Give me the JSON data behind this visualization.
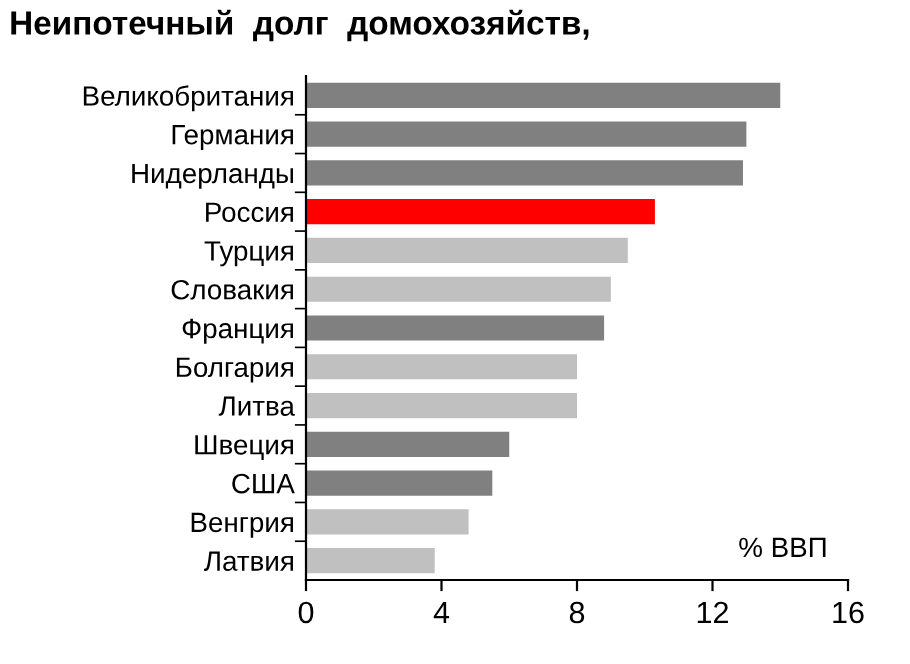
{
  "chart_data": {
    "type": "bar",
    "orientation": "horizontal",
    "title": "Неипотечный  долг  домохозяйств,",
    "categories": [
      "Великобритания",
      "Германия",
      "Нидерланды",
      "Россия",
      "Турция",
      "Словакия",
      "Франция",
      "Болгария",
      "Литва",
      "Швеция",
      "США",
      "Венгрия",
      "Латвия"
    ],
    "values": [
      14.0,
      13.0,
      12.9,
      10.3,
      9.5,
      9.0,
      8.8,
      8.0,
      8.0,
      6.0,
      5.5,
      4.8,
      3.8
    ],
    "colors": [
      "#808080",
      "#808080",
      "#808080",
      "#ff0000",
      "#c0c0c0",
      "#c0c0c0",
      "#808080",
      "#c0c0c0",
      "#c0c0c0",
      "#808080",
      "#808080",
      "#c0c0c0",
      "#c0c0c0"
    ],
    "xlim": [
      0,
      16
    ],
    "xticks": [
      0,
      4,
      8,
      12,
      16
    ],
    "grid": false,
    "annotations": [
      "% ВВП"
    ]
  }
}
